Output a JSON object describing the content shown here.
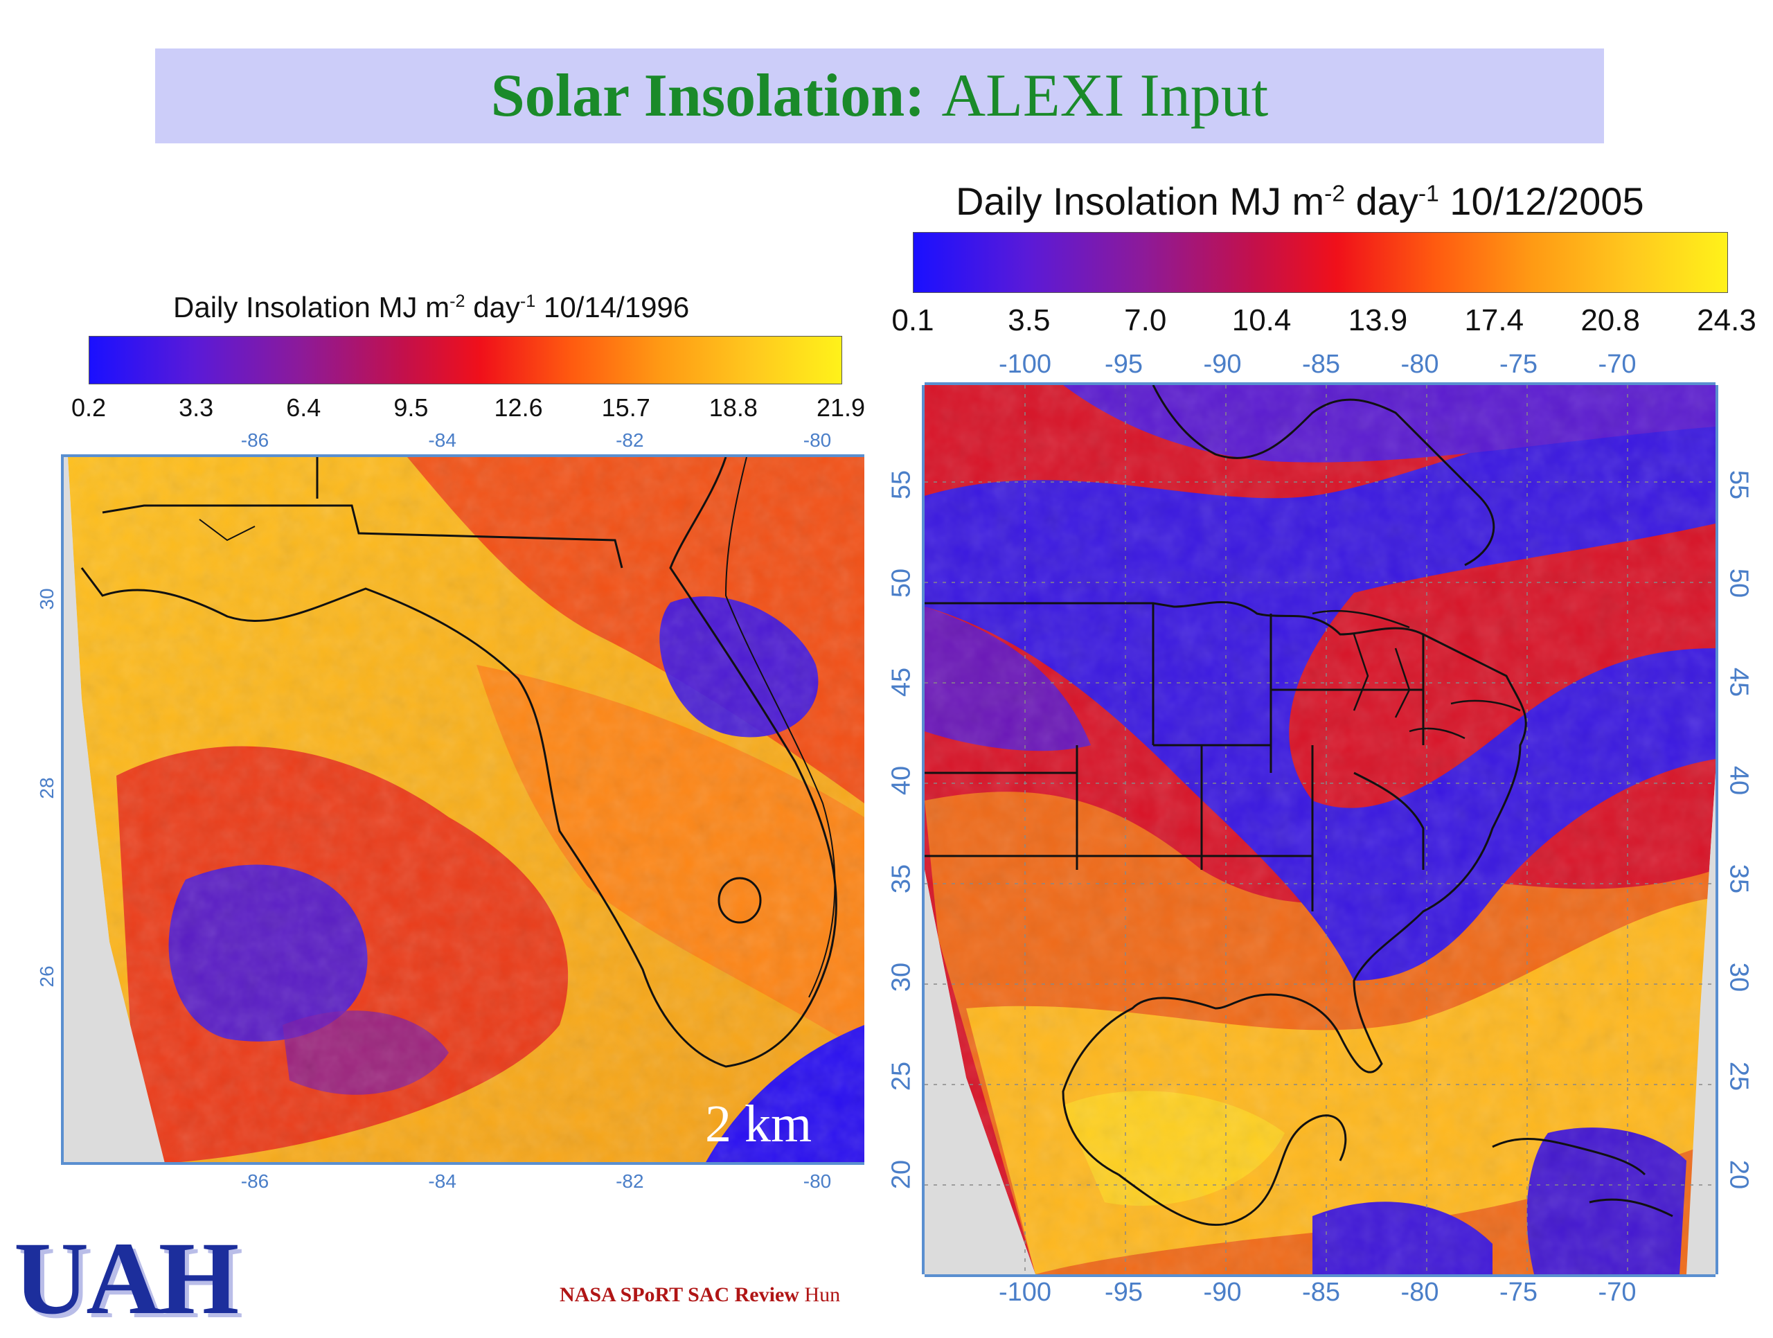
{
  "slide_title": {
    "bold": "Solar Insolation:",
    "regular": "ALEXI Input"
  },
  "left_panel": {
    "colorbar_title": {
      "prefix": "Daily Insolation MJ m",
      "exp1": "-2",
      "mid": " day",
      "exp2": "-1",
      "date": " 10/14/1996"
    },
    "colorbar_ticks": [
      "0.2",
      "3.3",
      "6.4",
      "9.5",
      "12.6",
      "15.7",
      "18.8",
      "21.9"
    ],
    "lon_labels": [
      "-86",
      "-84",
      "-82",
      "-80"
    ],
    "lat_labels": [
      "30",
      "28",
      "26"
    ],
    "scale_label": "2 km"
  },
  "right_panel": {
    "colorbar_title": {
      "prefix": "Daily Insolation MJ m",
      "exp1": "-2",
      "mid": " day",
      "exp2": "-1",
      "date": " 10/12/2005"
    },
    "colorbar_ticks": [
      "0.1",
      "3.5",
      "7.0",
      "10.4",
      "13.9",
      "17.4",
      "20.8",
      "24.3"
    ],
    "lon_labels": [
      "-100",
      "-95",
      "-90",
      "-85",
      "-80",
      "-75",
      "-70"
    ],
    "lat_labels": [
      "55",
      "50",
      "45",
      "40",
      "35",
      "30",
      "25",
      "20"
    ]
  },
  "colors": {
    "low": "#1a10ff",
    "mid": "#f0101a",
    "high": "#fff21a",
    "title_green": "#1a8a2a",
    "banner": "#cccdf9",
    "axis_blue": "#4a7ec8"
  },
  "logo": "UAH",
  "footer": {
    "bold": "NASA SPoRT SAC Review",
    "regular": " Hun"
  }
}
